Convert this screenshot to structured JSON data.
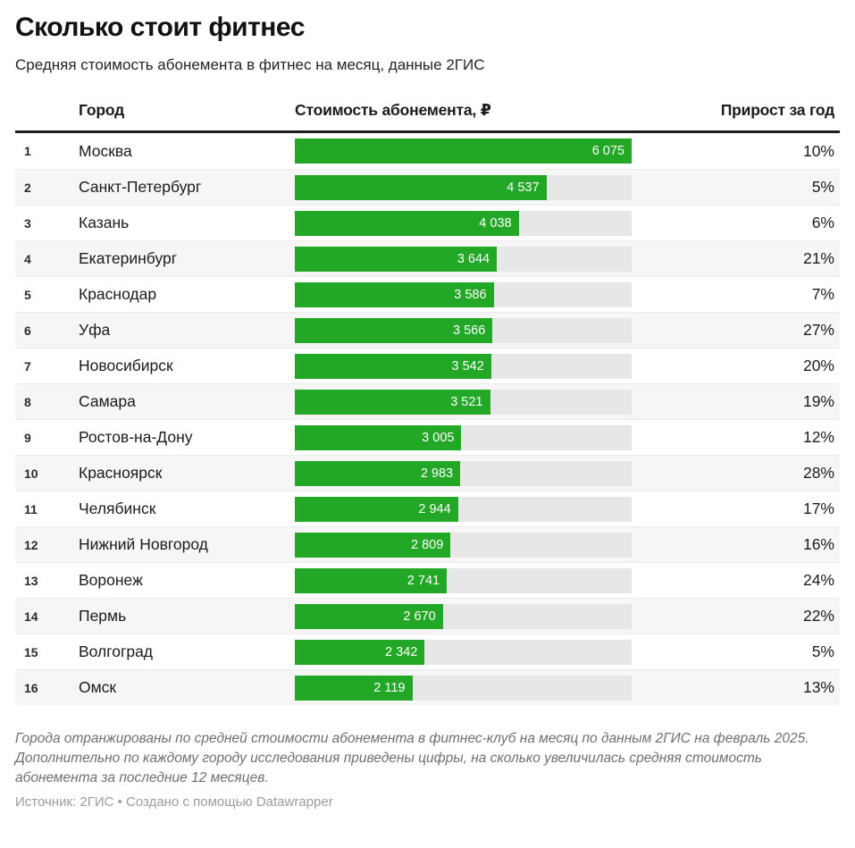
{
  "header": {
    "title": "Сколько стоит фитнес",
    "subtitle": "Средняя стоимость абонемента в фитнес на месяц, данные 2ГИС"
  },
  "table": {
    "columns": {
      "city": "Город",
      "value": "Стоимость абонемента, ₽",
      "growth": "Прирост за год"
    },
    "rows": [
      {
        "rank": "1",
        "city": "Москва",
        "value": 6075,
        "value_label": "6 075",
        "growth": "10%"
      },
      {
        "rank": "2",
        "city": "Санкт-Петербург",
        "value": 4537,
        "value_label": "4 537",
        "growth": "5%"
      },
      {
        "rank": "3",
        "city": "Казань",
        "value": 4038,
        "value_label": "4 038",
        "growth": "6%"
      },
      {
        "rank": "4",
        "city": "Екатеринбург",
        "value": 3644,
        "value_label": "3 644",
        "growth": "21%"
      },
      {
        "rank": "5",
        "city": "Краснодар",
        "value": 3586,
        "value_label": "3 586",
        "growth": "7%"
      },
      {
        "rank": "6",
        "city": "Уфа",
        "value": 3566,
        "value_label": "3 566",
        "growth": "27%"
      },
      {
        "rank": "7",
        "city": "Новосибирск",
        "value": 3542,
        "value_label": "3 542",
        "growth": "20%"
      },
      {
        "rank": "8",
        "city": "Самара",
        "value": 3521,
        "value_label": "3 521",
        "growth": "19%"
      },
      {
        "rank": "9",
        "city": "Ростов-на-Дону",
        "value": 3005,
        "value_label": "3 005",
        "growth": "12%"
      },
      {
        "rank": "10",
        "city": "Красноярск",
        "value": 2983,
        "value_label": "2 983",
        "growth": "28%"
      },
      {
        "rank": "11",
        "city": "Челябинск",
        "value": 2944,
        "value_label": "2 944",
        "growth": "17%"
      },
      {
        "rank": "12",
        "city": "Нижний Новгород",
        "value": 2809,
        "value_label": "2 809",
        "growth": "16%"
      },
      {
        "rank": "13",
        "city": "Воронеж",
        "value": 2741,
        "value_label": "2 741",
        "growth": "24%"
      },
      {
        "rank": "14",
        "city": "Пермь",
        "value": 2670,
        "value_label": "2 670",
        "growth": "22%"
      },
      {
        "rank": "15",
        "city": "Волгоград",
        "value": 2342,
        "value_label": "2 342",
        "growth": "5%"
      },
      {
        "rank": "16",
        "city": "Омск",
        "value": 2119,
        "value_label": "2 119",
        "growth": "13%"
      }
    ]
  },
  "chart_data": {
    "type": "bar",
    "orientation": "horizontal",
    "title": "Сколько стоит фитнес",
    "subtitle": "Средняя стоимость абонемента в фитнес на месяц, данные 2ГИС",
    "categories": [
      "Москва",
      "Санкт-Петербург",
      "Казань",
      "Екатеринбург",
      "Краснодар",
      "Уфа",
      "Новосибирск",
      "Самара",
      "Ростов-на-Дону",
      "Красноярск",
      "Челябинск",
      "Нижний Новгород",
      "Воронеж",
      "Пермь",
      "Волгоград",
      "Омск"
    ],
    "series": [
      {
        "name": "Стоимость абонемента, ₽",
        "values": [
          6075,
          4537,
          4038,
          3644,
          3586,
          3566,
          3542,
          3521,
          3005,
          2983,
          2944,
          2809,
          2741,
          2670,
          2342,
          2119
        ]
      },
      {
        "name": "Прирост за год, %",
        "values": [
          10,
          5,
          6,
          21,
          7,
          27,
          20,
          19,
          12,
          28,
          17,
          16,
          24,
          22,
          5,
          13
        ]
      }
    ],
    "xlabel": "",
    "ylabel": "",
    "xlim": [
      0,
      6075
    ],
    "grid": false,
    "legend": false,
    "bar_labels": true
  },
  "colors": {
    "bar": "#23a727",
    "track": "#e7e7e7",
    "stripe": "#f6f6f6",
    "rule": "#1f1f1f"
  },
  "footer": {
    "notes": "Города отранжированы по средней стоимости абонемента в фитнес-клуб на месяц по данным 2ГИС на февраль 2025. Дополнительно по каждому городу исследования приведены цифры, на сколько увеличилась средняя стоимость абонемента за последние 12 месяцев.",
    "source": "Источник: 2ГИС • Создано с помощью Datawrapper"
  }
}
